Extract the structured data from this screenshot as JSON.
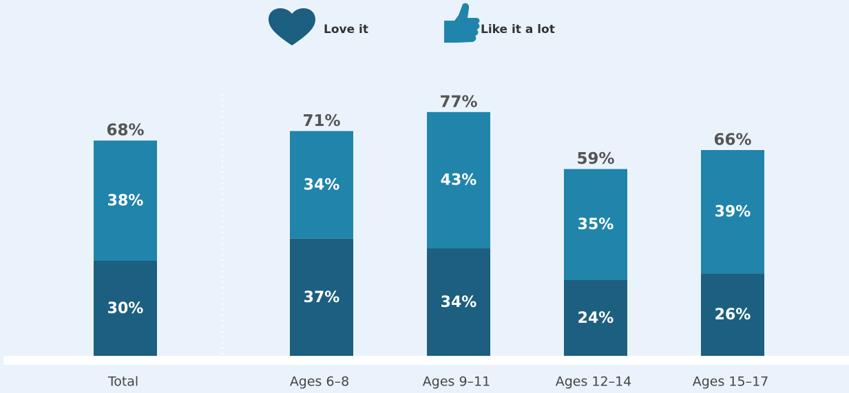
{
  "chart_data": {
    "type": "stacked-bar",
    "categories": [
      "Total",
      "Ages 6–8",
      "Ages 9–11",
      "Ages 12–14",
      "Ages 15–17"
    ],
    "series": [
      {
        "name": "Love it",
        "color": "#1c5f80",
        "values": [
          30,
          37,
          34,
          24,
          26
        ]
      },
      {
        "name": "Like it a lot",
        "color": "#2184aa",
        "values": [
          38,
          34,
          43,
          35,
          39
        ]
      }
    ],
    "totals": [
      68,
      71,
      77,
      59,
      66
    ],
    "value_labels": [
      [
        "30%",
        "37%",
        "34%",
        "24%",
        "26%"
      ],
      [
        "38%",
        "34%",
        "43%",
        "35%",
        "39%"
      ]
    ],
    "total_labels": [
      "68%",
      "71%",
      "77%",
      "59%",
      "66%"
    ],
    "ylim": [
      0,
      80
    ]
  }
}
